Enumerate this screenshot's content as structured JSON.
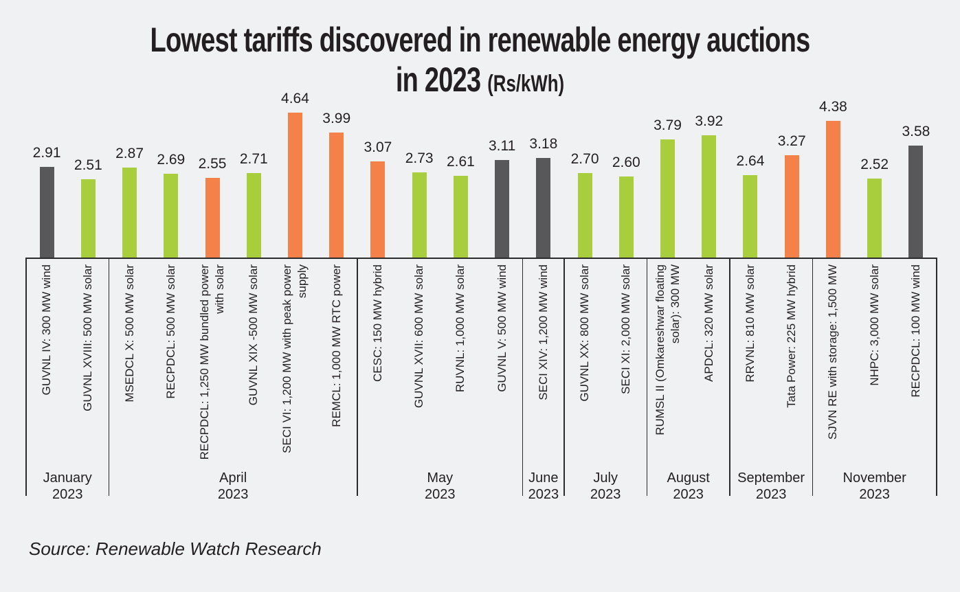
{
  "title": {
    "line1": "Lowest tariffs discovered in renewable energy auctions",
    "line2": "in 2023",
    "unit": "(Rs/kWh)"
  },
  "source": "Source: Renewable Watch Research",
  "colors": {
    "solar_green": "#a8ce3e",
    "orange": "#f48149",
    "wind_gray": "#58585a",
    "background": "#f0f1f2",
    "text": "#231f20",
    "line": "#2b2b2b"
  },
  "chart_data": {
    "type": "bar",
    "title": "Lowest tariffs discovered in renewable energy auctions in 2023 (Rs/kWh)",
    "unit": "Rs/kWh",
    "ylim": [
      0,
      4.64
    ],
    "grid": false,
    "legend": "none (color encodes technology: green=solar, grey=wind, orange=hybrid/peak/RTC/bundled/storage)",
    "bars": [
      {
        "label": "GUVNL IV: 300 MW wind",
        "label_lines": [
          "GUVNL IV: 300 MW wind"
        ],
        "value": 2.91,
        "display": "2.91",
        "color": "wind_gray"
      },
      {
        "label": "GUVNL XVIII: 500 MW solar",
        "label_lines": [
          "GUVNL XVIII: 500 MW solar"
        ],
        "value": 2.51,
        "display": "2.51",
        "color": "solar_green"
      },
      {
        "label": "MSEDCL X: 500 MW solar",
        "label_lines": [
          "MSEDCL X: 500 MW solar"
        ],
        "value": 2.87,
        "display": "2.87",
        "color": "solar_green"
      },
      {
        "label": "RECPDCL: 500 MW solar",
        "label_lines": [
          "RECPDCL: 500 MW solar"
        ],
        "value": 2.69,
        "display": "2.69",
        "color": "solar_green"
      },
      {
        "label": "RECPDCL: 1,250 MW bundled power with solar",
        "label_lines": [
          "RECPDCL: 1,250 MW bundled power",
          "with solar"
        ],
        "value": 2.55,
        "display": "2.55",
        "color": "orange"
      },
      {
        "label": "GUVNL XIX -500 MW solar",
        "label_lines": [
          "GUVNL XIX -500 MW solar"
        ],
        "value": 2.71,
        "display": "2.71",
        "color": "solar_green"
      },
      {
        "label": "SECI VI: 1,200 MW with peak power supply",
        "label_lines": [
          "SECI VI: 1,200 MW with peak power",
          "supply"
        ],
        "value": 4.64,
        "display": "4.64",
        "color": "orange"
      },
      {
        "label": "REMCL: 1,000 MW RTC power",
        "label_lines": [
          "REMCL: 1,000 MW RTC power"
        ],
        "value": 3.99,
        "display": "3.99",
        "color": "orange"
      },
      {
        "label": "CESC: 150 MW hybrid",
        "label_lines": [
          "CESC: 150 MW hybrid"
        ],
        "value": 3.07,
        "display": "3.07",
        "color": "orange"
      },
      {
        "label": "GUVNL XVII: 600 MW solar",
        "label_lines": [
          "GUVNL XVII: 600 MW solar"
        ],
        "value": 2.73,
        "display": "2.73",
        "color": "solar_green"
      },
      {
        "label": "RUVNL: 1,000 MW solar",
        "label_lines": [
          "RUVNL: 1,000 MW solar"
        ],
        "value": 2.61,
        "display": "2.61",
        "color": "solar_green"
      },
      {
        "label": "GUVNL V: 500 MW wind",
        "label_lines": [
          "GUVNL V: 500 MW wind"
        ],
        "value": 3.11,
        "display": "3.11",
        "color": "wind_gray"
      },
      {
        "label": "SECI XIV: 1,200 MW wind",
        "label_lines": [
          "SECI XIV: 1,200 MW wind"
        ],
        "value": 3.18,
        "display": "3.18",
        "color": "wind_gray"
      },
      {
        "label": "GUVNL XX: 800 MW solar",
        "label_lines": [
          "GUVNL XX: 800 MW solar"
        ],
        "value": 2.7,
        "display": "2.70",
        "color": "solar_green"
      },
      {
        "label": "SECI XI: 2,000 MW solar",
        "label_lines": [
          "SECI XI: 2,000 MW solar"
        ],
        "value": 2.6,
        "display": "2.60",
        "color": "solar_green"
      },
      {
        "label": "RUMSL II (Omkareshwar floating solar): 300 MW",
        "label_lines": [
          "RUMSL II (Omkareshwar floating",
          "solar): 300 MW"
        ],
        "value": 3.79,
        "display": "3.79",
        "color": "solar_green"
      },
      {
        "label": "APDCL: 320 MW solar",
        "label_lines": [
          "APDCL: 320 MW solar"
        ],
        "value": 3.92,
        "display": "3.92",
        "color": "solar_green"
      },
      {
        "label": "RRVNL: 810 MW solar",
        "label_lines": [
          "RRVNL: 810 MW solar"
        ],
        "value": 2.64,
        "display": "2.64",
        "color": "solar_green"
      },
      {
        "label": "Tata Power: 225 MW hybrid",
        "label_lines": [
          "Tata Power: 225 MW hybrid"
        ],
        "value": 3.27,
        "display": "3.27",
        "color": "orange"
      },
      {
        "label": "SJVN RE with storage: 1,500 MW",
        "label_lines": [
          "SJVN RE with storage: 1,500 MW"
        ],
        "value": 4.38,
        "display": "4.38",
        "color": "orange"
      },
      {
        "label": "NHPC: 3,000 MW solar",
        "label_lines": [
          "NHPC: 3,000 MW solar"
        ],
        "value": 2.52,
        "display": "2.52",
        "color": "solar_green"
      },
      {
        "label": "RECPDCL: 100 MW wind",
        "label_lines": [
          "RECPDCL: 100 MW wind"
        ],
        "value": 3.58,
        "display": "3.58",
        "color": "wind_gray"
      }
    ],
    "month_groups": [
      {
        "month": "January",
        "year": "2023",
        "bar_count": 2
      },
      {
        "month": "April",
        "year": "2023",
        "bar_count": 6
      },
      {
        "month": "May",
        "year": "2023",
        "bar_count": 4
      },
      {
        "month": "June",
        "year": "2023",
        "bar_count": 1
      },
      {
        "month": "July",
        "year": "2023",
        "bar_count": 2
      },
      {
        "month": "August",
        "year": "2023",
        "bar_count": 2
      },
      {
        "month": "September",
        "year": "2023",
        "bar_count": 2
      },
      {
        "month": "November",
        "year": "2023",
        "bar_count": 3
      }
    ]
  }
}
